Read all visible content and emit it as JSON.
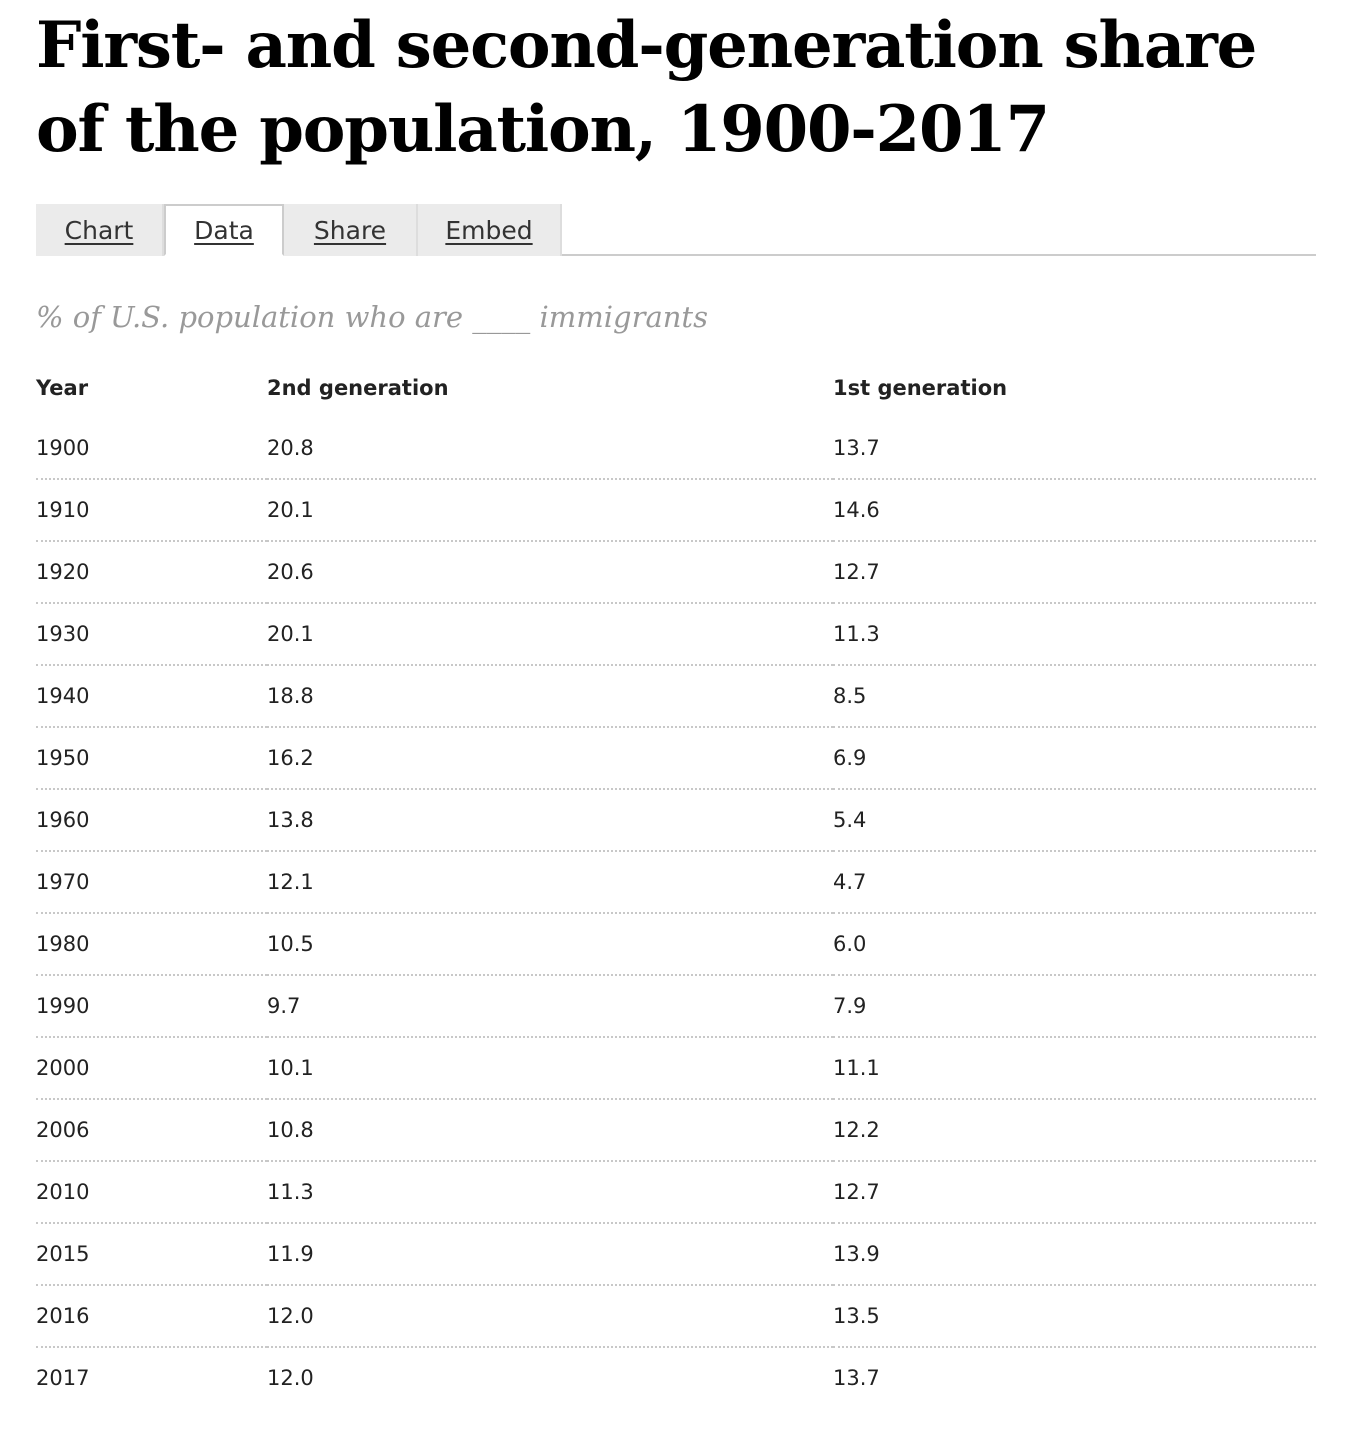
{
  "title": "First- and second-generation share of the population, 1900-2017",
  "tabs": [
    {
      "label": "Chart",
      "active": false
    },
    {
      "label": "Data",
      "active": true
    },
    {
      "label": "Share",
      "active": false
    },
    {
      "label": "Embed",
      "active": false
    }
  ],
  "subtitle": "% of U.S. population who are ____ immigrants",
  "table": {
    "headers": [
      "Year",
      "2nd generation",
      "1st generation"
    ],
    "rows": [
      [
        "1900",
        "20.8",
        "13.7"
      ],
      [
        "1910",
        "20.1",
        "14.6"
      ],
      [
        "1920",
        "20.6",
        "12.7"
      ],
      [
        "1930",
        "20.1",
        "11.3"
      ],
      [
        "1940",
        "18.8",
        "8.5"
      ],
      [
        "1950",
        "16.2",
        "6.9"
      ],
      [
        "1960",
        "13.8",
        "5.4"
      ],
      [
        "1970",
        "12.1",
        "4.7"
      ],
      [
        "1980",
        "10.5",
        "6.0"
      ],
      [
        "1990",
        "9.7",
        "7.9"
      ],
      [
        "2000",
        "10.1",
        "11.1"
      ],
      [
        "2006",
        "10.8",
        "12.2"
      ],
      [
        "2010",
        "11.3",
        "12.7"
      ],
      [
        "2015",
        "11.9",
        "13.9"
      ],
      [
        "2016",
        "12.0",
        "13.5"
      ],
      [
        "2017",
        "12.0",
        "13.7"
      ]
    ]
  }
}
